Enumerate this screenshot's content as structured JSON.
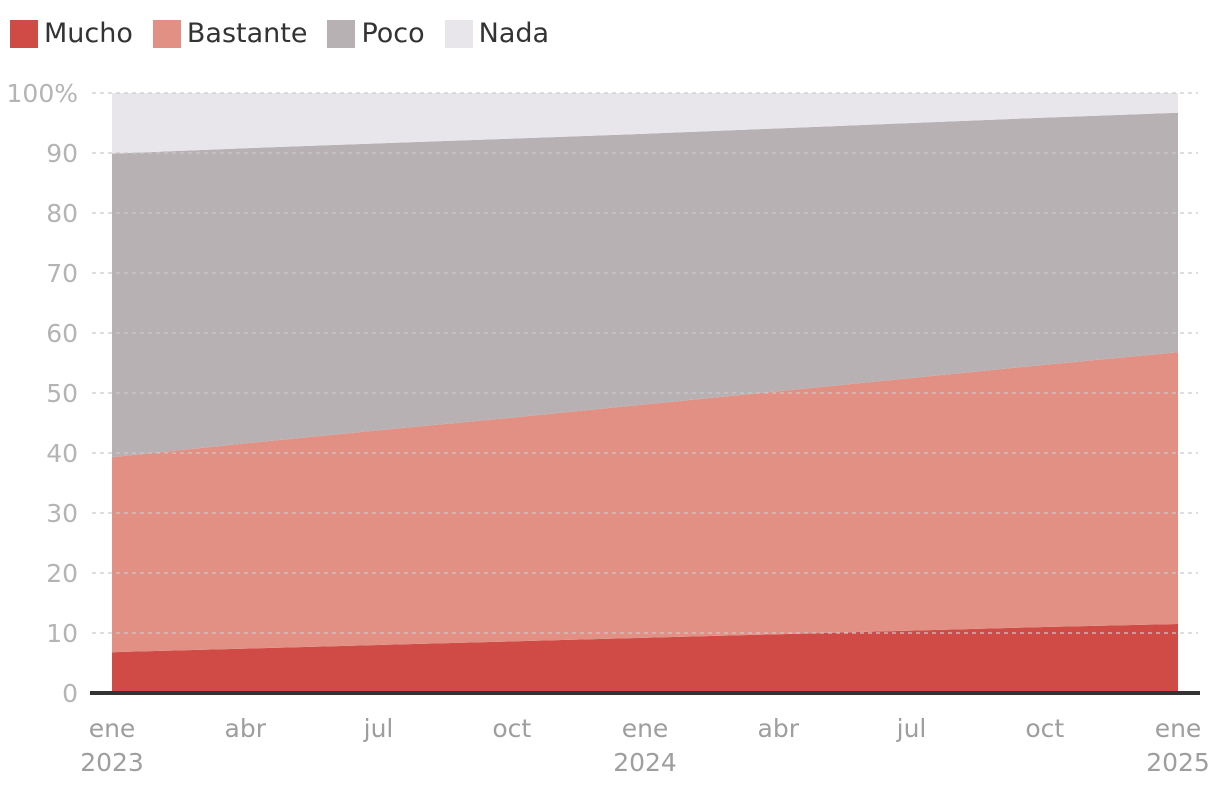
{
  "chart_data": {
    "type": "area",
    "stacked": true,
    "title": "",
    "xlabel": "",
    "ylabel": "",
    "ylim": [
      0,
      100
    ],
    "y_ticks": [
      0,
      10,
      20,
      30,
      40,
      50,
      60,
      70,
      80,
      90,
      100
    ],
    "y_tick_labels": [
      "0",
      "10",
      "20",
      "30",
      "40",
      "50",
      "60",
      "70",
      "80",
      "90",
      "100%"
    ],
    "x": [
      "2023-01",
      "2023-04",
      "2023-07",
      "2023-10",
      "2024-01",
      "2024-04",
      "2024-07",
      "2024-10",
      "2025-01"
    ],
    "x_ticks": [
      {
        "month": "ene",
        "year": "2023"
      },
      {
        "month": "abr",
        "year": ""
      },
      {
        "month": "jul",
        "year": ""
      },
      {
        "month": "oct",
        "year": ""
      },
      {
        "month": "ene",
        "year": "2024"
      },
      {
        "month": "abr",
        "year": ""
      },
      {
        "month": "jul",
        "year": ""
      },
      {
        "month": "oct",
        "year": ""
      },
      {
        "month": "ene",
        "year": "2025"
      }
    ],
    "grid": true,
    "legend_position": "top-left",
    "series": [
      {
        "name": "Mucho",
        "color": "#d04b45",
        "values": [
          6.8,
          7.4,
          8.0,
          8.6,
          9.2,
          9.8,
          10.4,
          11.0,
          11.5
        ]
      },
      {
        "name": "Bastante",
        "color": "#e39084",
        "values": [
          32.5,
          34.2,
          35.8,
          37.3,
          38.9,
          40.5,
          42.1,
          43.7,
          45.3
        ]
      },
      {
        "name": "Poco",
        "color": "#b7b1b3",
        "values": [
          50.6,
          49.2,
          47.8,
          46.5,
          45.1,
          43.8,
          42.5,
          41.2,
          39.9
        ]
      },
      {
        "name": "Nada",
        "color": "#e8e6eb",
        "values": [
          10.1,
          9.2,
          8.4,
          7.6,
          6.8,
          5.9,
          5.0,
          4.1,
          3.3
        ]
      }
    ]
  }
}
